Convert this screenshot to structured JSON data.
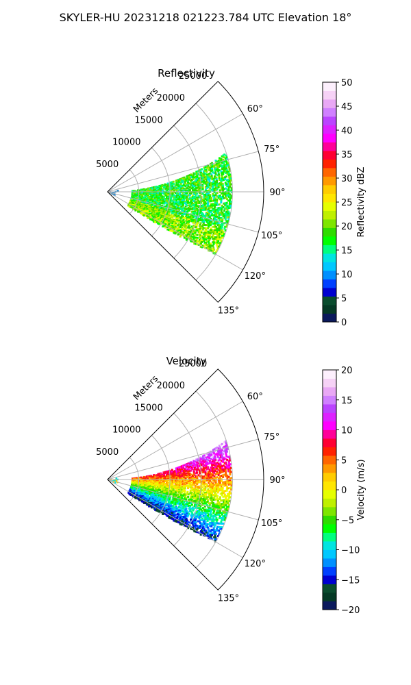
{
  "figure": {
    "suptitle": "SKYLER-HU  20231218  021223.784 UTC Elevation 18°"
  },
  "chart_data": [
    {
      "type": "heatmap",
      "projection": "polar-sector",
      "title": "Reflectivity",
      "r_label": "Meters",
      "r_ticks": [
        "5000",
        "10000",
        "15000",
        "20000",
        "25000"
      ],
      "r_lim": [
        0,
        25000
      ],
      "theta_ticks": [
        "60°",
        "75°",
        "90°",
        "105°",
        "120°",
        "135°"
      ],
      "theta_lim_deg": [
        45,
        135
      ],
      "grid": true,
      "colorbar": {
        "label": "Reflectivity dBZ",
        "ticks": [
          "0",
          "5",
          "10",
          "15",
          "20",
          "25",
          "30",
          "35",
          "40",
          "45",
          "50"
        ],
        "range": [
          0,
          50
        ],
        "stops": [
          "#0b1a5c",
          "#053a25",
          "#0a4d2e",
          "#0000d0",
          "#0040ff",
          "#0090ff",
          "#00c8ff",
          "#00e5e0",
          "#00ff7f",
          "#00ff00",
          "#2edc00",
          "#7ee600",
          "#bff000",
          "#e6ff00",
          "#ffe600",
          "#ffcc00",
          "#ff9900",
          "#ff6600",
          "#ff2200",
          "#ff0033",
          "#ff0099",
          "#ff00ff",
          "#dd22ff",
          "#bb44ff",
          "#d080ff",
          "#e9a8f5",
          "#f6d2f6",
          "#fdf0fd"
        ]
      },
      "echo_region": {
        "range_m": [
          4000,
          20000
        ],
        "azimuth_deg": [
          72,
          124
        ]
      },
      "echo_value_range": [
        8,
        24
      ]
    },
    {
      "type": "heatmap",
      "projection": "polar-sector",
      "title": "Velocity",
      "r_label": "Meters",
      "r_ticks": [
        "5000",
        "10000",
        "15000",
        "20000",
        "25000"
      ],
      "r_lim": [
        0,
        25000
      ],
      "theta_ticks": [
        "60°",
        "75°",
        "90°",
        "105°",
        "120°",
        "135°"
      ],
      "theta_lim_deg": [
        45,
        135
      ],
      "grid": true,
      "colorbar": {
        "label": "Velocity (m/s)",
        "ticks": [
          "−20",
          "−15",
          "−10",
          "−5",
          "0",
          "5",
          "10",
          "15",
          "20"
        ],
        "range": [
          -20,
          20
        ],
        "stops": [
          "#0b1a5c",
          "#053a25",
          "#0a4d2e",
          "#0000d0",
          "#0040ff",
          "#0090ff",
          "#00c8ff",
          "#00e5e0",
          "#00ff7f",
          "#00ff00",
          "#2edc00",
          "#7ee600",
          "#bff000",
          "#e6ff00",
          "#ffe600",
          "#ffcc00",
          "#ff9900",
          "#ff6600",
          "#ff2200",
          "#ff0033",
          "#ff0099",
          "#ff00ff",
          "#dd22ff",
          "#bb44ff",
          "#d080ff",
          "#e9a8f5",
          "#f6d2f6",
          "#fdf0fd"
        ]
      },
      "echo_region": {
        "range_m": [
          4000,
          20000
        ],
        "azimuth_deg": [
          72,
          124
        ]
      },
      "echo_value_range": [
        -18,
        16
      ]
    }
  ]
}
